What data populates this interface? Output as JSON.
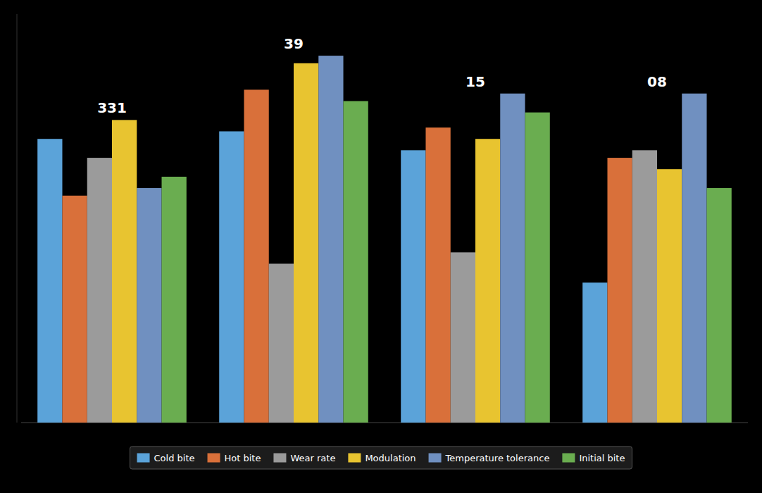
{
  "chart_data": {
    "type": "bar",
    "categories": [
      "331",
      "39",
      "15",
      "08"
    ],
    "series": [
      {
        "name": "Cold bite",
        "color": "#5BA3D9",
        "values": [
          75,
          77,
          72,
          37
        ]
      },
      {
        "name": "Hot bite",
        "color": "#D9703A",
        "values": [
          60,
          88,
          78,
          70
        ]
      },
      {
        "name": "Wear rate",
        "color": "#9B9B9B",
        "values": [
          70,
          42,
          45,
          72
        ]
      },
      {
        "name": "Modulation",
        "color": "#E8C430",
        "values": [
          80,
          95,
          75,
          67
        ]
      },
      {
        "name": "Temperature tolerance",
        "color": "#7090C0",
        "values": [
          62,
          97,
          87,
          87
        ]
      },
      {
        "name": "Initial bite",
        "color": "#6AAD50",
        "values": [
          65,
          85,
          82,
          62
        ]
      }
    ],
    "ylim": [
      0,
      108
    ],
    "tick_labels": false,
    "grid": false,
    "legend": "bottom"
  }
}
